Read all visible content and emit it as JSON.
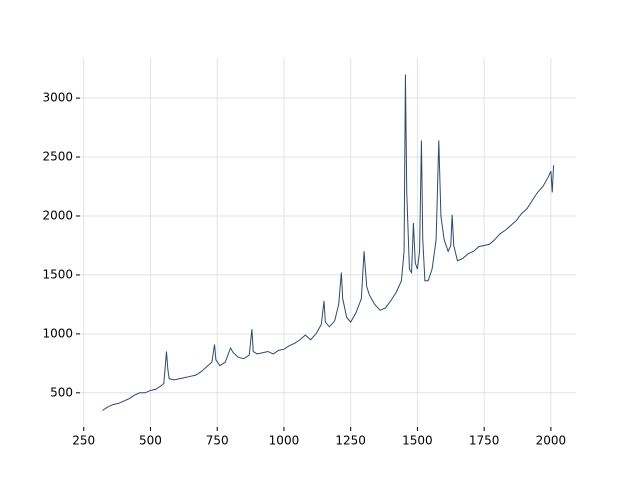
{
  "chart_data": {
    "type": "line",
    "color": "#2e4a6b",
    "grid": true,
    "xlim": [
      236,
      2094
    ],
    "ylim": [
      210,
      3340
    ],
    "xticks": [
      250,
      500,
      750,
      1000,
      1250,
      1500,
      1750,
      2000
    ],
    "yticks": [
      500,
      1000,
      1500,
      2000,
      2500,
      3000
    ],
    "x": [
      320,
      340,
      360,
      380,
      400,
      420,
      440,
      460,
      480,
      500,
      520,
      540,
      550,
      560,
      565,
      570,
      590,
      610,
      630,
      650,
      670,
      690,
      710,
      730,
      740,
      745,
      760,
      780,
      800,
      810,
      830,
      850,
      870,
      880,
      885,
      900,
      920,
      940,
      960,
      980,
      1000,
      1020,
      1040,
      1060,
      1080,
      1100,
      1120,
      1140,
      1150,
      1155,
      1170,
      1190,
      1205,
      1215,
      1220,
      1235,
      1250,
      1270,
      1290,
      1300,
      1310,
      1320,
      1340,
      1360,
      1380,
      1400,
      1420,
      1440,
      1450,
      1455,
      1460,
      1470,
      1478,
      1485,
      1492,
      1500,
      1508,
      1515,
      1520,
      1528,
      1540,
      1555,
      1570,
      1580,
      1588,
      1600,
      1615,
      1625,
      1630,
      1636,
      1650,
      1670,
      1690,
      1710,
      1730,
      1750,
      1770,
      1790,
      1810,
      1830,
      1850,
      1870,
      1890,
      1910,
      1930,
      1950,
      1970,
      1990,
      2000,
      2005,
      2010
    ],
    "values": [
      350,
      380,
      400,
      410,
      430,
      450,
      480,
      500,
      500,
      520,
      530,
      560,
      580,
      850,
      700,
      620,
      610,
      620,
      630,
      640,
      650,
      680,
      720,
      760,
      910,
      780,
      730,
      760,
      880,
      840,
      800,
      790,
      820,
      1040,
      850,
      830,
      840,
      850,
      830,
      860,
      870,
      900,
      920,
      950,
      990,
      950,
      1000,
      1080,
      1280,
      1100,
      1060,
      1110,
      1250,
      1520,
      1300,
      1140,
      1100,
      1180,
      1300,
      1700,
      1400,
      1330,
      1250,
      1200,
      1220,
      1280,
      1350,
      1450,
      1700,
      3200,
      2200,
      1550,
      1520,
      1940,
      1600,
      1550,
      1700,
      2640,
      1800,
      1450,
      1450,
      1550,
      1800,
      2640,
      2000,
      1800,
      1700,
      1750,
      2010,
      1750,
      1620,
      1640,
      1680,
      1700,
      1740,
      1750,
      1760,
      1800,
      1850,
      1880,
      1920,
      1960,
      2020,
      2060,
      2130,
      2200,
      2250,
      2330,
      2380,
      2200,
      2430
    ]
  }
}
